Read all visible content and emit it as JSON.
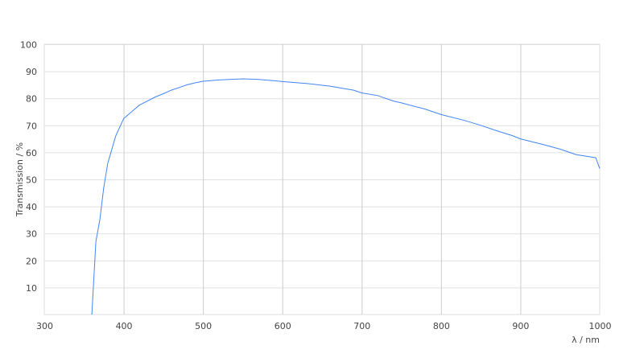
{
  "chart_data": {
    "type": "line",
    "title": "",
    "xlabel": "λ / nm",
    "ylabel": "Transmission / %",
    "xlim": [
      300,
      1000
    ],
    "ylim": [
      0,
      100
    ],
    "x_ticks": [
      300,
      400,
      500,
      600,
      700,
      800,
      900,
      1000
    ],
    "y_ticks": [
      10,
      20,
      30,
      40,
      50,
      60,
      70,
      80,
      90,
      100
    ],
    "grid": true,
    "line_color": "#4285f4",
    "series": [
      {
        "x": [
          360,
          365,
          370,
          375,
          380,
          390,
          400,
          410,
          420,
          430,
          440,
          450,
          460,
          470,
          480,
          490,
          500,
          520,
          550,
          570,
          590,
          600,
          630,
          660,
          690,
          700,
          720,
          740,
          750,
          780,
          800,
          830,
          850,
          870,
          890,
          900,
          930,
          950,
          970,
          995,
          1000
        ],
        "y": [
          0,
          27,
          35,
          47,
          56,
          66,
          72.5,
          75,
          77.5,
          79,
          80.5,
          81.7,
          83,
          84,
          85,
          85.7,
          86.3,
          86.8,
          87.2,
          87,
          86.5,
          86.2,
          85.5,
          84.5,
          83,
          82,
          81,
          79,
          78.3,
          76,
          74,
          71.8,
          70,
          68,
          66.2,
          65,
          62.8,
          61.2,
          59.2,
          58,
          54
        ]
      }
    ]
  }
}
